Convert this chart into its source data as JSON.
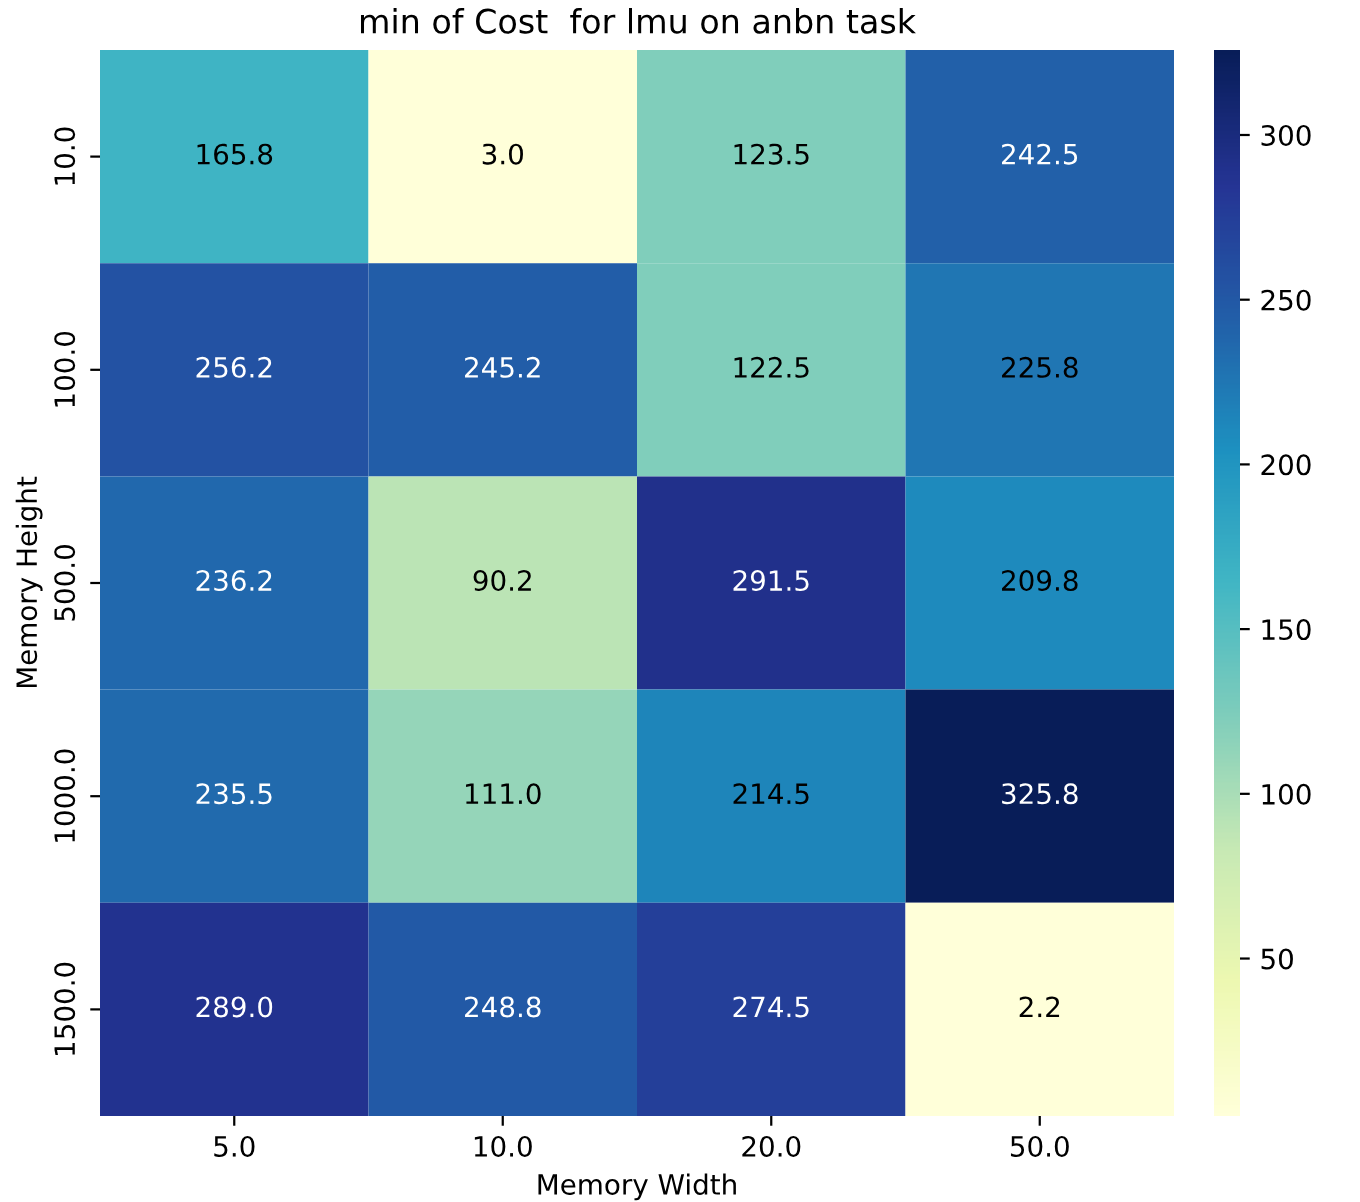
{
  "chart_data": {
    "type": "heatmap",
    "title": "min of Cost  for lmu on anbn task",
    "xlabel": "Memory Width",
    "ylabel": "Memory Height",
    "categories": [
      "5.0",
      "10.0",
      "20.0",
      "50.0"
    ],
    "y_categories": [
      "10.0",
      "100.0",
      "500.0",
      "1000.0",
      "1500.0"
    ],
    "cells": [
      [
        165.8,
        3.0,
        123.5,
        242.5
      ],
      [
        256.2,
        245.2,
        122.5,
        225.8
      ],
      [
        236.2,
        90.2,
        291.5,
        209.8
      ],
      [
        235.5,
        111.0,
        214.5,
        325.8
      ],
      [
        289.0,
        248.8,
        274.5,
        2.2
      ]
    ],
    "cell_labels": [
      [
        "165.8",
        "3.0",
        "123.5",
        "242.5"
      ],
      [
        "256.2",
        "245.2",
        "122.5",
        "225.8"
      ],
      [
        "236.2",
        "90.2",
        "291.5",
        "209.8"
      ],
      [
        "235.5",
        "111.0",
        "214.5",
        "325.8"
      ],
      [
        "289.0",
        "248.8",
        "274.5",
        "2.2"
      ]
    ],
    "clim": [
      2.2,
      325.8
    ],
    "cticks": [
      50,
      100,
      150,
      200,
      250,
      300
    ]
  }
}
